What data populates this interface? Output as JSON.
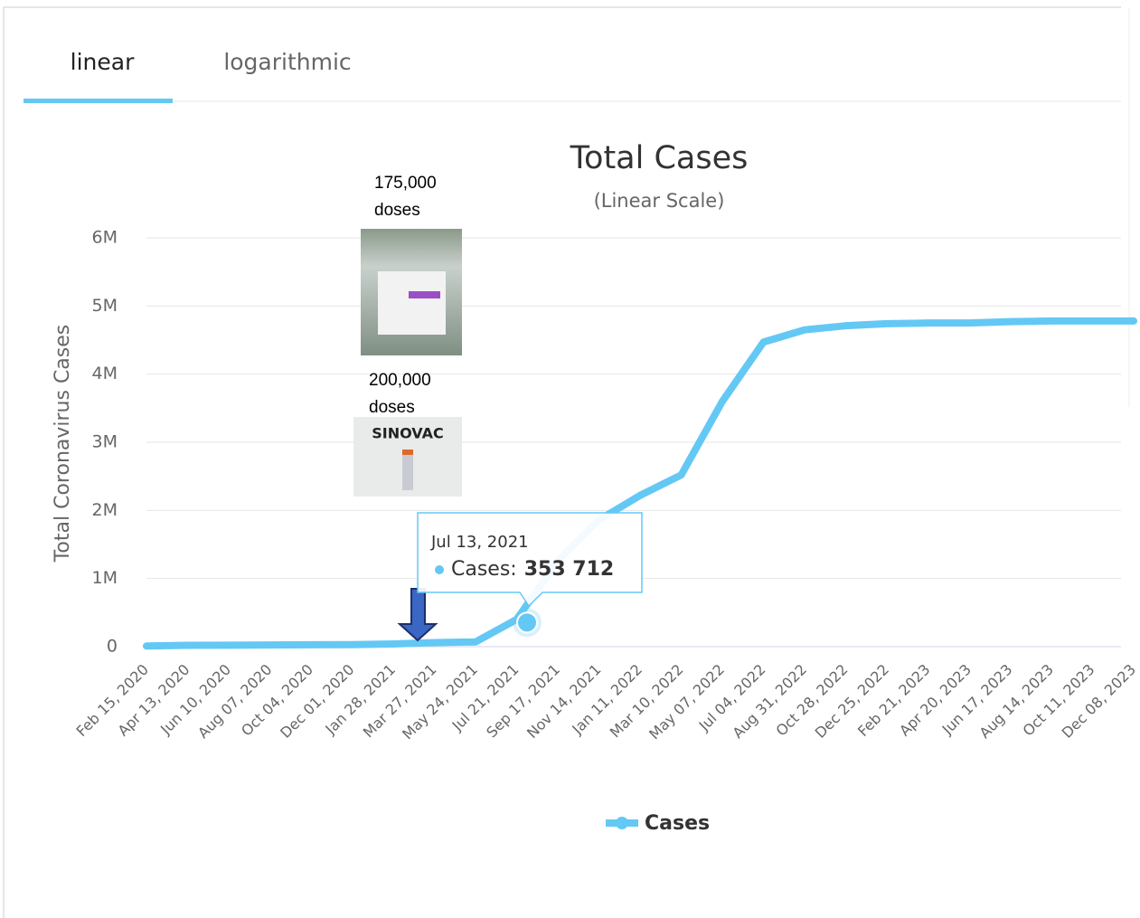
{
  "tabs": [
    "linear",
    "logarithmic"
  ],
  "chart_data": {
    "type": "line",
    "title": "Total Cases",
    "subtitle": "(Linear Scale)",
    "y_label": "Total Coronavirus Cases",
    "categories": [
      "Feb 15, 2020",
      "Apr 13, 2020",
      "Jun 10, 2020",
      "Aug 07, 2020",
      "Oct 04, 2020",
      "Dec 01, 2020",
      "Jan 28, 2021",
      "Mar 27, 2021",
      "May 24, 2021",
      "Jul 21, 2021",
      "Sep 17, 2021",
      "Nov 14, 2021",
      "Jan 11, 2022",
      "Mar 10, 2022",
      "May 07, 2022",
      "Jul 04, 2022",
      "Aug 31, 2022",
      "Oct 28, 2022",
      "Dec 25, 2022",
      "Feb 21, 2023",
      "Apr 20, 2023",
      "Jun 17, 2023",
      "Aug 14, 2023",
      "Oct 11, 2023",
      "Dec 08, 2023"
    ],
    "series": [
      {
        "name": "Cases",
        "color": "#64c8f5",
        "values": [
          10000,
          20000,
          22000,
          25000,
          28000,
          30000,
          40000,
          60000,
          70000,
          400000,
          1260000,
          1860000,
          2220000,
          2520000,
          3600000,
          4470000,
          4650000,
          4710000,
          4740000,
          4750000,
          4750000,
          4770000,
          4780000,
          4780000,
          4780000
        ]
      }
    ],
    "ylim": [
      0,
      6000000
    ],
    "yticks": [
      0,
      {
        "value": 1000000,
        "label": "1M"
      },
      {
        "value": 2000000,
        "label": "2M"
      },
      {
        "value": 3000000,
        "label": "3M"
      },
      {
        "value": 4000000,
        "label": "4M"
      },
      {
        "value": 5000000,
        "label": "5M"
      },
      {
        "value": 6000000,
        "label": "6M"
      }
    ],
    "grid": true,
    "legend": "bottom",
    "tooltip": {
      "date": "Jul 13, 2021",
      "label": "Cases:",
      "value": 353712,
      "value_label": "353 712"
    },
    "annotations": [
      {
        "text": "175,000 doses"
      },
      {
        "text": "200,000 doses",
        "image_label": "SINOVAC"
      }
    ]
  }
}
